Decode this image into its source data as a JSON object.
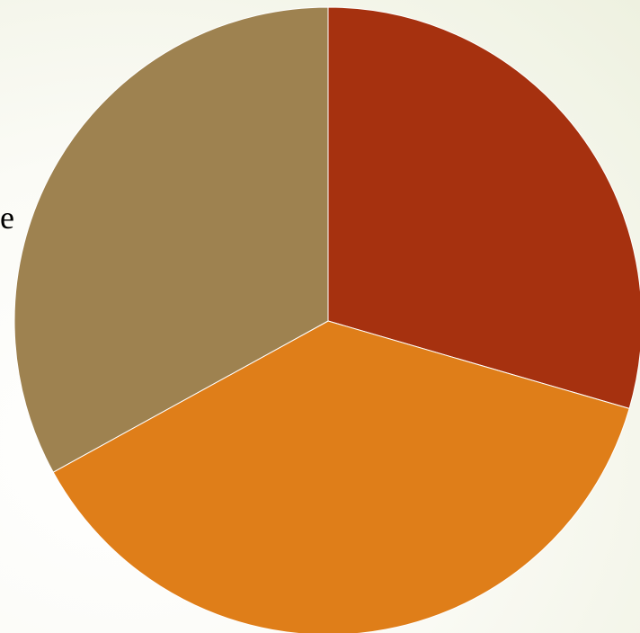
{
  "chart_data": {
    "type": "pie",
    "slices": [
      {
        "value": 29.5,
        "color": "#a6310f"
      },
      {
        "value": 37.5,
        "color": "#df7e19"
      },
      {
        "value": 33.0,
        "color": "#9e8250"
      }
    ],
    "start_angle_deg": 0,
    "direction": "clockwise",
    "title": "",
    "legend": "none"
  },
  "page": {
    "side_text": "e"
  }
}
